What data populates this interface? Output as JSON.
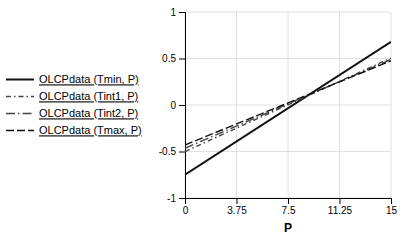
{
  "chart_data": {
    "type": "line",
    "x_label": "P",
    "x": [
      0,
      15
    ],
    "xlim": [
      0,
      15
    ],
    "ylim": [
      -1,
      1
    ],
    "xticks": [
      0,
      3.75,
      7.5,
      11.25,
      15
    ],
    "yticks": [
      -1,
      -0.5,
      0,
      0.5,
      1
    ],
    "grid": true,
    "legend": "left",
    "series": [
      {
        "name": "OLCPdata (Tmin, P)",
        "color": "#111111",
        "line_style": "solid",
        "values": [
          -0.75,
          0.68
        ]
      },
      {
        "name": "OLCPdata (Tint1, P)",
        "color": "#444444",
        "line_style": "dashdot",
        "values": [
          -0.5,
          0.505
        ]
      },
      {
        "name": "OLCPdata (Tint2, P)",
        "color": "#444444",
        "line_style": "longdashdot",
        "values": [
          -0.465,
          0.49
        ]
      },
      {
        "name": "OLCPdata (Tmax, P)",
        "color": "#111111",
        "line_style": "dashed",
        "values": [
          -0.43,
          0.475
        ]
      }
    ]
  }
}
